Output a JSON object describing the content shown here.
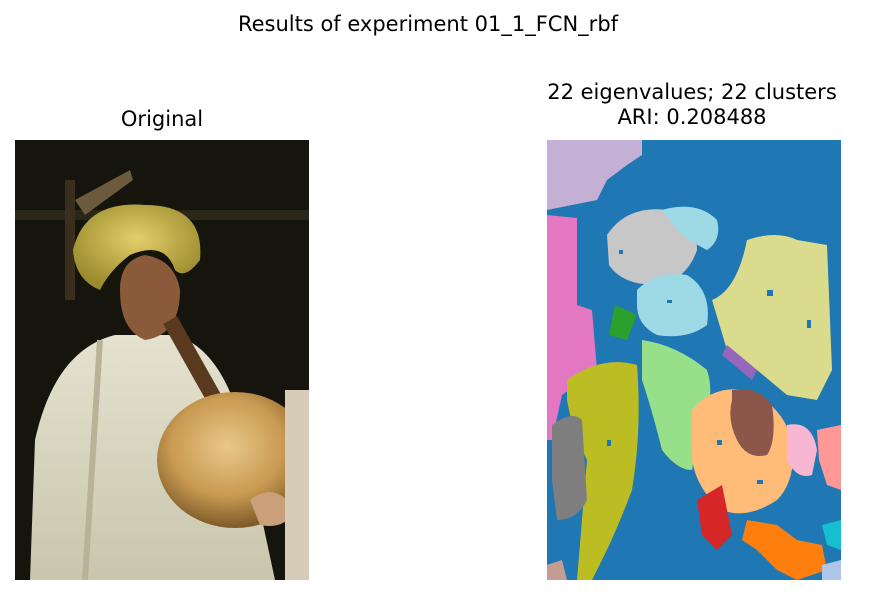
{
  "figure": {
    "suptitle": "Results of experiment 01_1_FCN_rbf"
  },
  "left_panel": {
    "title": "Original",
    "image_description_icon": "photo-icon"
  },
  "right_panel": {
    "title_line1": "22 eigenvalues; 22 clusters",
    "title_line2": "ARI: 0.208488",
    "image_description_icon": "segmentation-map-icon"
  },
  "colors": {
    "background": "#1f77b4",
    "lavender": "#c5b0d5",
    "pink": "#e377c2",
    "olive": "#bcbd22",
    "light_green": "#98df8a",
    "light_cyan": "#9edae5",
    "gray_light": "#c7c7c7",
    "khaki": "#dbdb8d",
    "peach": "#ffbb78",
    "brown": "#8c564b",
    "light_pink": "#f7b6d2",
    "red": "#d62728",
    "orange": "#ff7f0e",
    "gray": "#7f7f7f",
    "green": "#2ca02c",
    "purple": "#9467bd",
    "salmon": "#ff9896",
    "cyan": "#17becf",
    "light_blue": "#aec7e8",
    "tan": "#c49c94"
  }
}
